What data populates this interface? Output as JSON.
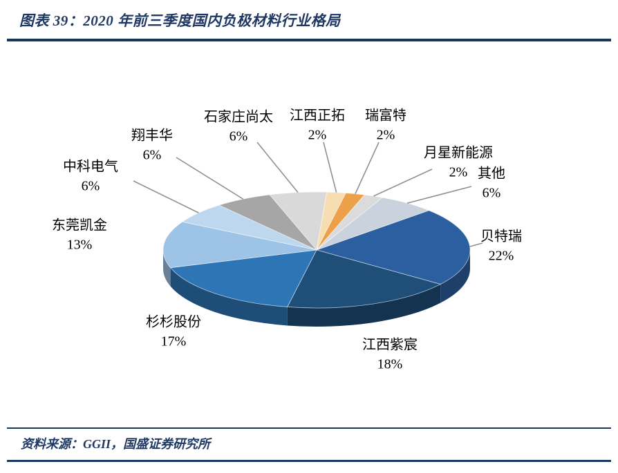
{
  "header": {
    "title": "图表 39：2020 年前三季度国内负极材料行业格局"
  },
  "footer": {
    "source": "资料来源：GGII，国盛证券研究所"
  },
  "colors": {
    "accent_navy": "#1F3864",
    "rule_navy": "#17365D",
    "leader_gray": "#909090"
  },
  "chart_data": {
    "type": "pie",
    "title": "2020 年前三季度国内负极材料行业格局",
    "unit": "%",
    "style_3d": true,
    "start_angle_deg": 47,
    "legend": "none",
    "slices": [
      {
        "label": "贝特瑞",
        "value": 22,
        "color": "#2C5FA0"
      },
      {
        "label": "江西紫宸",
        "value": 18,
        "color": "#1F4E79"
      },
      {
        "label": "杉杉股份",
        "value": 17,
        "color": "#2E75B6"
      },
      {
        "label": "东莞凯金",
        "value": 13,
        "color": "#9DC3E6"
      },
      {
        "label": "中科电气",
        "value": 6,
        "color": "#BDD7EE"
      },
      {
        "label": "翔丰华",
        "value": 6,
        "color": "#A6A6A6"
      },
      {
        "label": "石家庄尚太",
        "value": 6,
        "color": "#D9D9D9"
      },
      {
        "label": "江西正拓",
        "value": 2,
        "color": "#F6DEB2"
      },
      {
        "label": "瑞富特",
        "value": 2,
        "color": "#ECA049"
      },
      {
        "label": "月星新能源",
        "value": 2,
        "color": "#DBDBDB"
      },
      {
        "label": "其他",
        "value": 6,
        "color": "#CAD2DD"
      }
    ]
  }
}
